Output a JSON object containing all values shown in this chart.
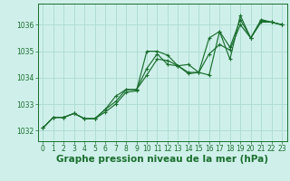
{
  "xlabel": "Graphe pression niveau de la mer (hPa)",
  "background_color": "#cff0ea",
  "grid_color": "#b0ddd5",
  "line_color": "#1a6e2e",
  "xlim": [
    -0.5,
    23.5
  ],
  "ylim": [
    1031.6,
    1036.8
  ],
  "yticks": [
    1032,
    1033,
    1034,
    1035,
    1036
  ],
  "xticks": [
    0,
    1,
    2,
    3,
    4,
    5,
    6,
    7,
    8,
    9,
    10,
    11,
    12,
    13,
    14,
    15,
    16,
    17,
    18,
    19,
    20,
    21,
    22,
    23
  ],
  "series1_x": [
    0,
    1,
    2,
    3,
    4,
    5,
    6,
    7,
    8,
    9,
    10,
    11,
    12,
    13,
    14,
    15,
    16,
    17,
    18,
    19,
    20,
    21,
    22,
    23
  ],
  "series1_y": [
    1032.1,
    1032.5,
    1032.5,
    1032.65,
    1032.45,
    1032.45,
    1032.7,
    1033.0,
    1033.45,
    1033.5,
    1035.0,
    1035.0,
    1034.85,
    1034.45,
    1034.5,
    1034.2,
    1034.1,
    1035.75,
    1034.7,
    1036.35,
    1035.5,
    1036.2,
    1036.1,
    1036.0
  ],
  "series2_x": [
    0,
    1,
    2,
    3,
    4,
    5,
    6,
    7,
    8,
    9,
    10,
    11,
    12,
    13,
    14,
    15,
    16,
    17,
    18,
    19,
    20,
    21,
    22,
    23
  ],
  "series2_y": [
    1032.1,
    1032.5,
    1032.5,
    1032.65,
    1032.45,
    1032.45,
    1032.8,
    1033.3,
    1033.55,
    1033.55,
    1034.35,
    1034.9,
    1034.5,
    1034.45,
    1034.15,
    1034.2,
    1035.5,
    1035.75,
    1035.15,
    1036.2,
    1035.5,
    1036.15,
    1036.1,
    1036.0
  ],
  "series3_x": [
    0,
    1,
    2,
    3,
    4,
    5,
    6,
    7,
    8,
    9,
    10,
    11,
    12,
    13,
    14,
    15,
    16,
    17,
    18,
    19,
    20,
    21,
    22,
    23
  ],
  "series3_y": [
    1032.1,
    1032.5,
    1032.5,
    1032.65,
    1032.45,
    1032.45,
    1032.8,
    1033.1,
    1033.55,
    1033.55,
    1034.1,
    1034.7,
    1034.65,
    1034.45,
    1034.2,
    1034.2,
    1034.9,
    1035.25,
    1035.05,
    1036.0,
    1035.5,
    1036.1,
    1036.1,
    1036.0
  ],
  "xlabel_fontsize": 7.5,
  "tick_fontsize": 5.5,
  "label_color": "#1a6e2e"
}
